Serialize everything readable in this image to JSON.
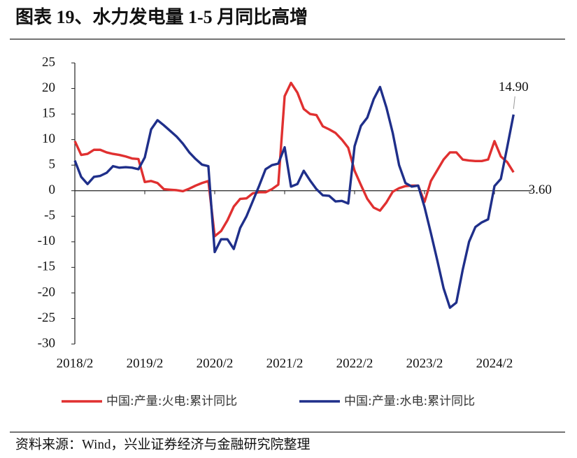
{
  "chart_data": {
    "type": "line",
    "title": "图表 19、水力发电量 1-5 月同比高增",
    "source": "资料来源：Wind，兴业证券经济与金融研究院整理",
    "categories": [
      "2018/2",
      null,
      null,
      null,
      null,
      null,
      null,
      null,
      null,
      null,
      null,
      "2019/2",
      null,
      null,
      null,
      null,
      null,
      null,
      null,
      null,
      null,
      null,
      "2020/2",
      null,
      null,
      null,
      null,
      null,
      null,
      null,
      null,
      null,
      null,
      "2021/2",
      null,
      null,
      null,
      null,
      null,
      null,
      null,
      null,
      null,
      null,
      "2022/2",
      null,
      null,
      null,
      null,
      null,
      null,
      null,
      null,
      null,
      null,
      "2023/2",
      null,
      null,
      null,
      null,
      null,
      null,
      null,
      null,
      null,
      null,
      "2024/2",
      null,
      null,
      null
    ],
    "series": [
      {
        "name": "中国:产量:火电:累计同比",
        "color": "#e03030",
        "values": [
          9.7,
          7,
          7.2,
          8,
          8,
          7.5,
          7.2,
          7,
          6.7,
          6.3,
          6.2,
          1.7,
          1.9,
          1.5,
          0.3,
          0.2,
          0.1,
          -0.1,
          0.4,
          1,
          1.5,
          1.9,
          -8.9,
          -7.9,
          -5.8,
          -3.1,
          -1.6,
          -1.5,
          -0.5,
          -0.3,
          -0.3,
          0.3,
          1.2,
          18.5,
          21.1,
          19.2,
          16,
          15,
          14.8,
          12.6,
          12,
          11.3,
          10,
          8.4,
          3.9,
          1.1,
          -1.6,
          -3.3,
          -3.9,
          -2.3,
          -0.2,
          0.5,
          0.9,
          1,
          1,
          -2.2,
          1.9,
          4,
          6.1,
          7.5,
          7.5,
          6.1,
          5.9,
          5.8,
          5.8,
          6.1,
          9.7,
          6.7,
          5.6,
          3.6
        ],
        "value_labels": [
          null,
          null,
          null,
          null,
          null,
          null,
          null,
          null,
          null,
          null,
          null,
          null,
          null,
          null,
          null,
          null,
          null,
          null,
          null,
          null,
          null,
          null,
          null,
          null,
          null,
          null,
          null,
          null,
          null,
          null,
          null,
          null,
          null,
          null,
          null,
          null,
          null,
          null,
          null,
          null,
          null,
          null,
          null,
          null,
          null,
          null,
          null,
          null,
          null,
          null,
          null,
          null,
          null,
          null,
          null,
          null,
          null,
          null,
          null,
          null,
          null,
          null,
          null,
          null,
          null,
          null,
          null,
          null,
          null,
          "3.60"
        ]
      },
      {
        "name": "中国:产量:水电:累计同比",
        "color": "#1f2f8a",
        "values": [
          5.9,
          2.7,
          1.3,
          2.7,
          2.9,
          3.5,
          4.8,
          4.5,
          4.6,
          4.5,
          4.2,
          6.5,
          12,
          13.8,
          12.8,
          11.7,
          10.6,
          9.2,
          7.5,
          6.2,
          5.1,
          4.8,
          -12,
          -9.5,
          -9.5,
          -11.4,
          -7.3,
          -5,
          -2,
          1,
          4.2,
          5,
          5.3,
          8.5,
          0.8,
          1.3,
          3.9,
          2,
          0.3,
          -0.9,
          -1,
          -2.1,
          -2,
          -2.5,
          8.7,
          12.7,
          14.3,
          17.9,
          20.3,
          16.3,
          11.3,
          5,
          1.5,
          0.8,
          1,
          -3.2,
          -8.3,
          -13.6,
          -19.1,
          -22.9,
          -21.9,
          -15.5,
          -10,
          -7.1,
          -6.2,
          -5.6,
          0.9,
          2.3,
          8.5,
          14.9
        ],
        "value_labels": [
          null,
          null,
          null,
          null,
          null,
          null,
          null,
          null,
          null,
          null,
          null,
          null,
          null,
          null,
          null,
          null,
          null,
          null,
          null,
          null,
          null,
          null,
          null,
          null,
          null,
          null,
          null,
          null,
          null,
          null,
          null,
          null,
          null,
          null,
          null,
          null,
          null,
          null,
          null,
          null,
          null,
          null,
          null,
          null,
          null,
          null,
          null,
          null,
          null,
          null,
          null,
          null,
          null,
          null,
          null,
          null,
          null,
          null,
          null,
          null,
          null,
          null,
          null,
          null,
          null,
          null,
          null,
          null,
          null,
          "14.90"
        ]
      }
    ],
    "ylim": [
      -30,
      25
    ],
    "yticks": [
      25,
      20,
      15,
      10,
      5,
      0,
      -5,
      -10,
      -15,
      -20,
      -25,
      -30
    ],
    "grid": false,
    "legend": "bottom"
  }
}
